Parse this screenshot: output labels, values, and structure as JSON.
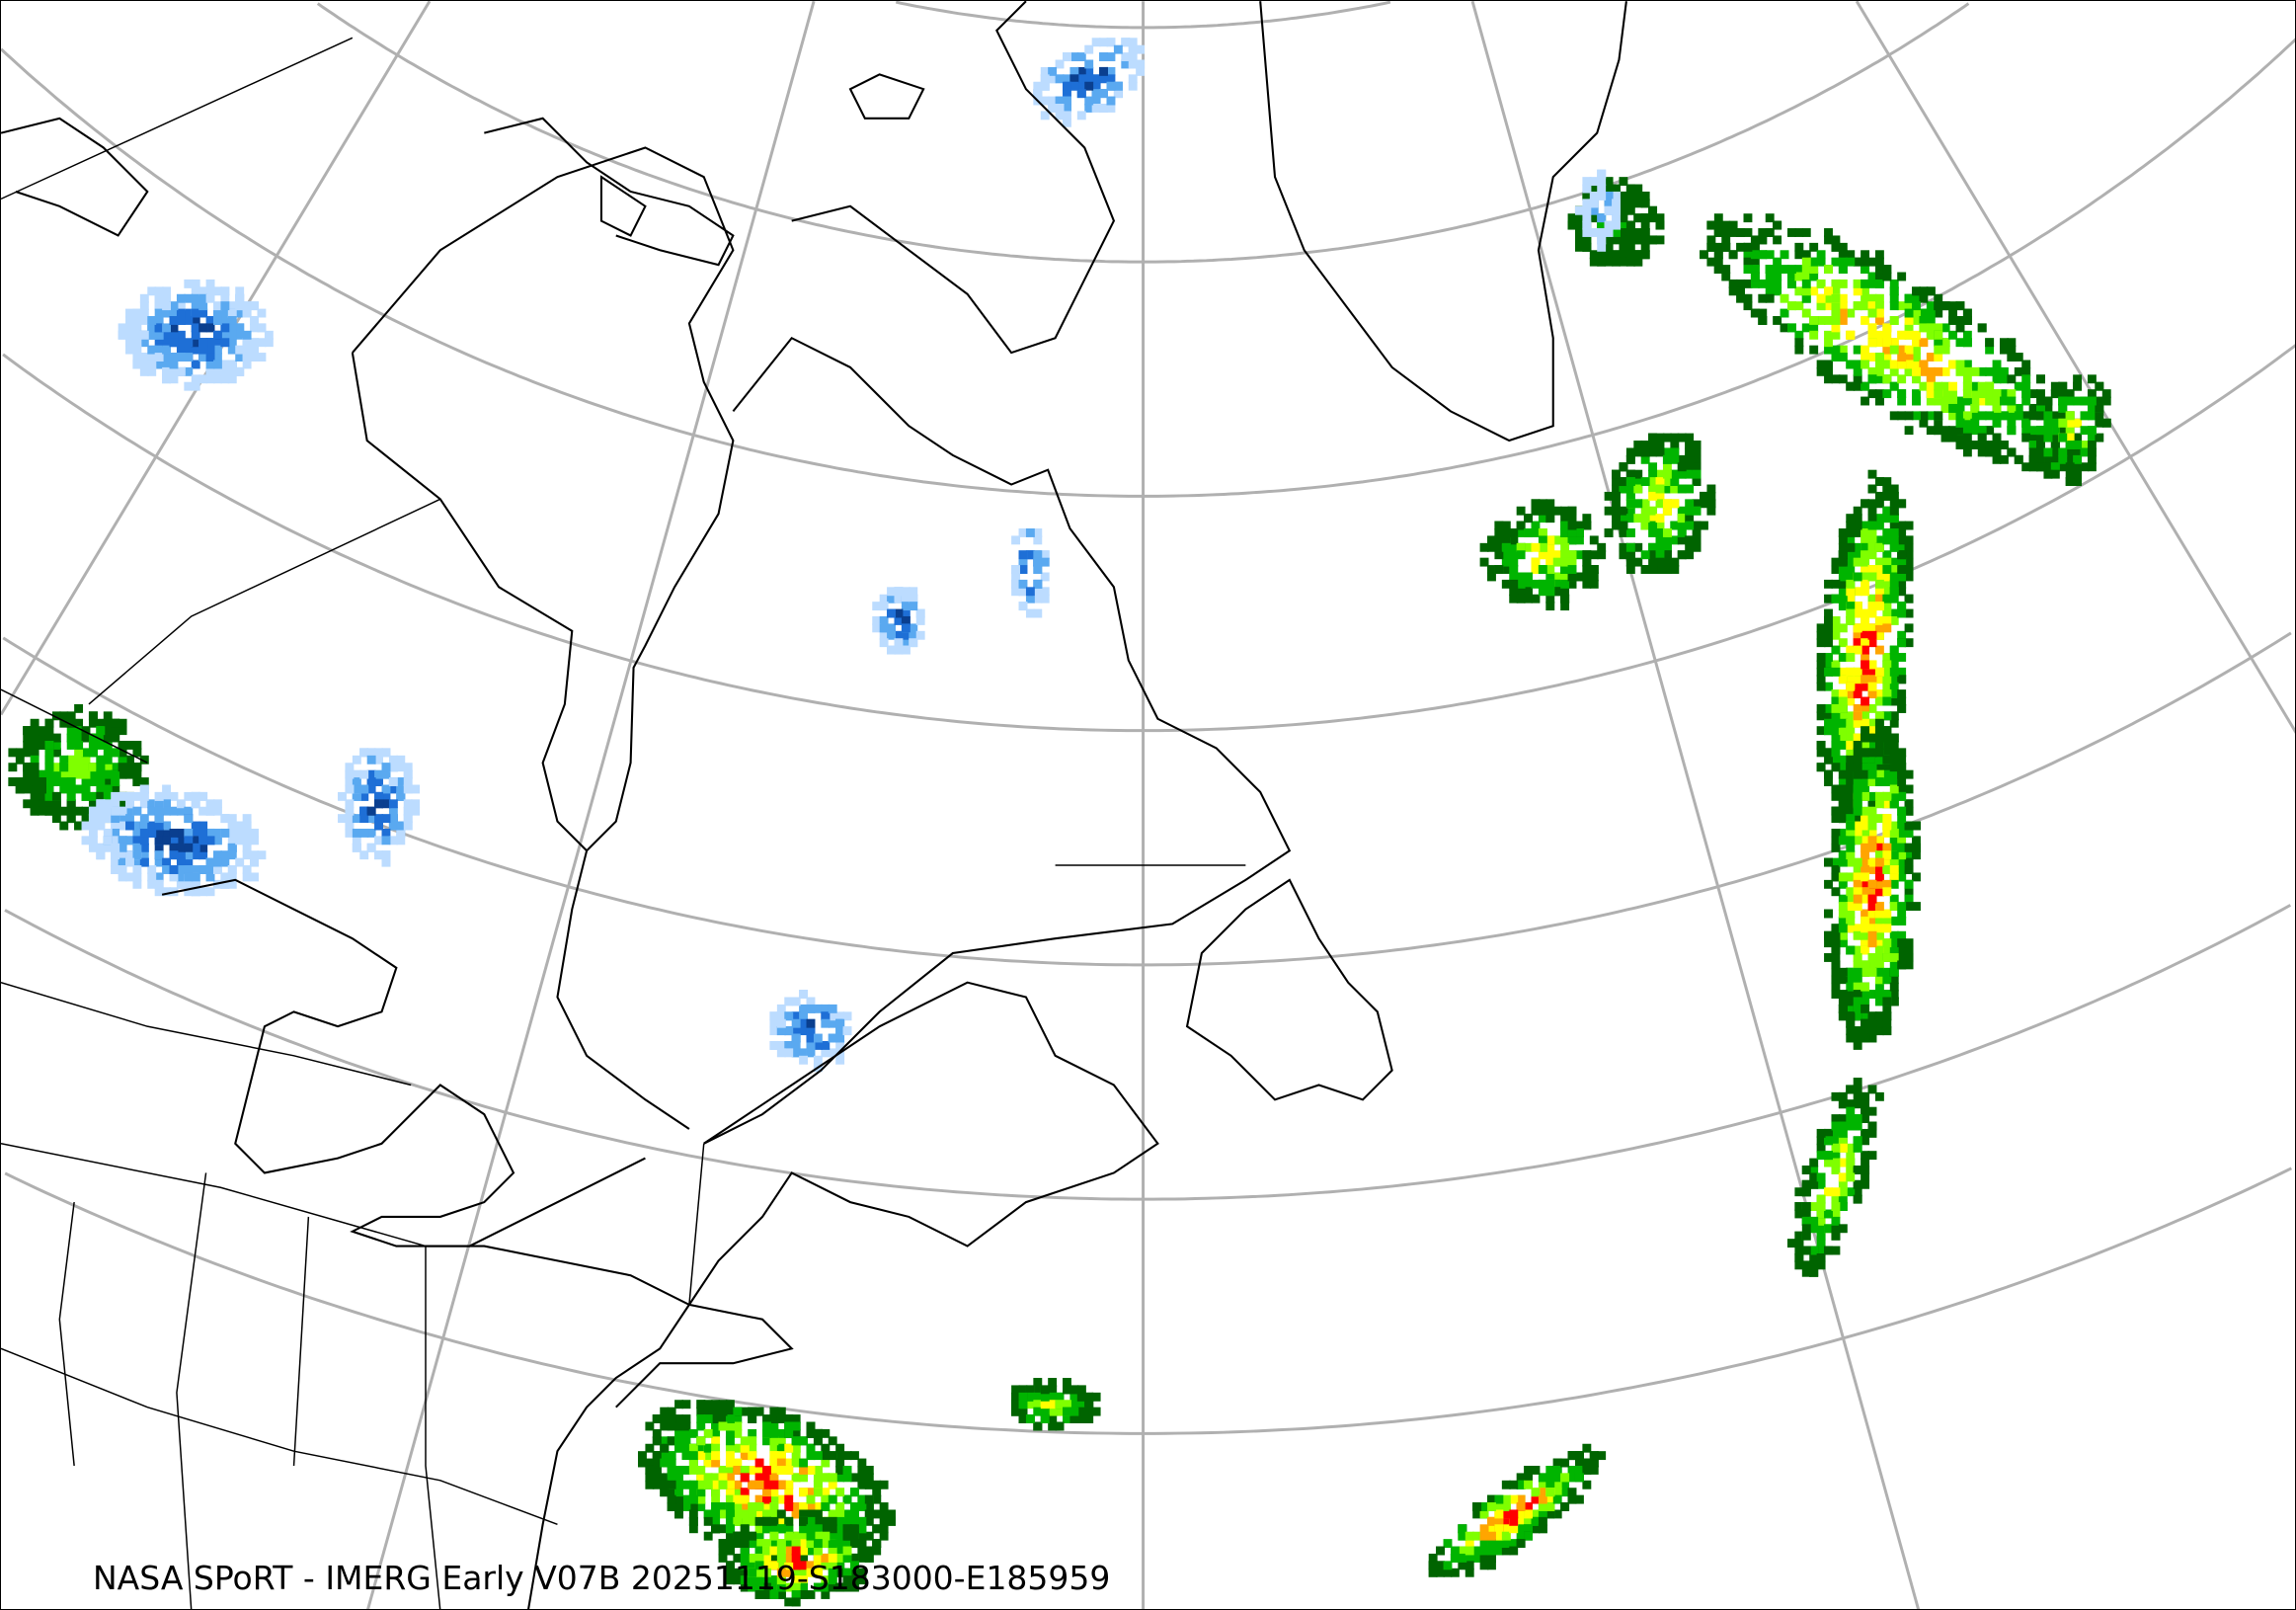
{
  "map": {
    "caption": "NASA SPoRT - IMERG Early V07B 20251119-S183000-E185959",
    "projection": "lambert-conformal-conic",
    "graticule_color": "#b0b0b0",
    "coastline_color": "#000000",
    "precip_colors": {
      "light_snow": "#bcdcff",
      "snow": "#5aa9f0",
      "moderate_snow": "#1e6fd6",
      "heavy_snow": "#0a3f8f",
      "light_rain": "#006400",
      "rain": "#00b400",
      "moderate_rain": "#7fff00",
      "heavy_rain": "#ffff00",
      "very_heavy_rain": "#ffa500",
      "extreme_rain": "#ff0000"
    }
  }
}
